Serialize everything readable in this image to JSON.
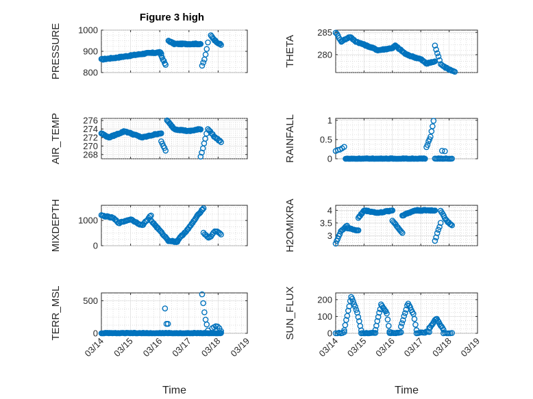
{
  "figure": {
    "title": "Figure 3 high"
  },
  "colors": {
    "marker": "#0072BD",
    "axis": "#262626"
  },
  "chart_data": [
    {
      "type": "scatter",
      "name": "pressure",
      "ylabel": "PRESSURE",
      "xlabel": "",
      "xlim": [
        0,
        5
      ],
      "ylim": [
        800,
        1000
      ],
      "yticks": [
        800,
        900,
        1000
      ],
      "xtick_labels": [],
      "title": "Figure 3 high",
      "segments": [
        {
          "x0": 0.0,
          "x1": 2.05,
          "n": 70,
          "y": [
            [
              0,
              862
            ],
            [
              0.5,
              870
            ],
            [
              1,
              880
            ],
            [
              1.5,
              890
            ],
            [
              2.0,
              895
            ],
            [
              2.05,
              890
            ]
          ]
        },
        {
          "x0": 2.05,
          "x1": 2.2,
          "n": 6,
          "y": [
            [
              2.05,
              880
            ],
            [
              2.2,
              835
            ]
          ]
        },
        {
          "x0": 2.3,
          "x1": 3.4,
          "n": 40,
          "y": [
            [
              2.3,
              950
            ],
            [
              2.5,
              935
            ],
            [
              3.0,
              935
            ],
            [
              3.4,
              935
            ]
          ]
        },
        {
          "x0": 3.45,
          "x1": 3.65,
          "n": 6,
          "y": [
            [
              3.45,
              830
            ],
            [
              3.55,
              870
            ],
            [
              3.65,
              940
            ]
          ]
        },
        {
          "x0": 3.75,
          "x1": 4.1,
          "n": 12,
          "y": [
            [
              3.75,
              975
            ],
            [
              3.9,
              950
            ],
            [
              4.1,
              930
            ]
          ]
        }
      ]
    },
    {
      "type": "scatter",
      "name": "theta",
      "ylabel": "THETA",
      "xlabel": "",
      "xlim": [
        0,
        5
      ],
      "ylim": [
        276,
        285.5
      ],
      "yticks": [
        280,
        285
      ],
      "xtick_labels": [],
      "segments": [
        {
          "x0": 0.0,
          "x1": 0.2,
          "n": 6,
          "y": [
            [
              0,
              285
            ],
            [
              0.1,
              284
            ],
            [
              0.2,
              283
            ]
          ]
        },
        {
          "x0": 0.2,
          "x1": 0.9,
          "n": 20,
          "y": [
            [
              0.2,
              283
            ],
            [
              0.5,
              284
            ],
            [
              0.7,
              283
            ],
            [
              0.9,
              282.5
            ]
          ]
        },
        {
          "x0": 0.9,
          "x1": 2.1,
          "n": 40,
          "y": [
            [
              0.9,
              282.5
            ],
            [
              1.5,
              281
            ],
            [
              2.0,
              281.5
            ],
            [
              2.1,
              282
            ]
          ]
        },
        {
          "x0": 2.1,
          "x1": 3.5,
          "n": 45,
          "y": [
            [
              2.1,
              282
            ],
            [
              2.5,
              280
            ],
            [
              3.0,
              279
            ],
            [
              3.2,
              278
            ],
            [
              3.5,
              278.5
            ]
          ]
        },
        {
          "x0": 3.5,
          "x1": 4.2,
          "n": 18,
          "y": [
            [
              3.5,
              282
            ],
            [
              3.7,
              278
            ],
            [
              3.9,
              277
            ],
            [
              4.2,
              276.2
            ]
          ]
        }
      ]
    },
    {
      "type": "scatter",
      "name": "air_temp",
      "ylabel": "AIR_TEMP",
      "xlabel": "",
      "xlim": [
        0,
        5
      ],
      "ylim": [
        267,
        276.5
      ],
      "yticks": [
        268,
        270,
        272,
        274,
        276
      ],
      "xtick_labels": [],
      "segments": [
        {
          "x0": 0.0,
          "x1": 2.05,
          "n": 65,
          "y": [
            [
              0,
              273
            ],
            [
              0.25,
              272
            ],
            [
              0.8,
              273.5
            ],
            [
              1.4,
              272
            ],
            [
              2.0,
              273
            ]
          ]
        },
        {
          "x0": 2.05,
          "x1": 2.2,
          "n": 5,
          "y": [
            [
              2.05,
              271
            ],
            [
              2.2,
              269
            ]
          ]
        },
        {
          "x0": 2.25,
          "x1": 3.4,
          "n": 40,
          "y": [
            [
              2.25,
              276
            ],
            [
              2.5,
              274
            ],
            [
              3.0,
              273.5
            ],
            [
              3.4,
              274
            ]
          ]
        },
        {
          "x0": 3.4,
          "x1": 3.6,
          "n": 6,
          "y": [
            [
              3.4,
              267.5
            ],
            [
              3.5,
              270
            ],
            [
              3.6,
              273
            ]
          ]
        },
        {
          "x0": 3.65,
          "x1": 4.1,
          "n": 12,
          "y": [
            [
              3.65,
              274
            ],
            [
              3.9,
              272
            ],
            [
              4.1,
              271
            ]
          ]
        }
      ]
    },
    {
      "type": "scatter",
      "name": "rainfall",
      "ylabel": "RAINFALL",
      "xlabel": "",
      "xlim": [
        0,
        5
      ],
      "ylim": [
        0,
        1.05
      ],
      "yticks": [
        0,
        0.5,
        1
      ],
      "xtick_labels": [],
      "segments": [
        {
          "x0": 0.0,
          "x1": 0.3,
          "n": 5,
          "y": [
            [
              0,
              0.2
            ],
            [
              0.3,
              0.3
            ]
          ]
        },
        {
          "x0": 0.35,
          "x1": 3.15,
          "n": 95,
          "y": [
            [
              0.35,
              0
            ],
            [
              3.15,
              0
            ]
          ]
        },
        {
          "x0": 3.2,
          "x1": 3.45,
          "n": 8,
          "y": [
            [
              3.2,
              0.3
            ],
            [
              3.35,
              0.6
            ],
            [
              3.45,
              1.0
            ]
          ]
        },
        {
          "x0": 3.5,
          "x1": 4.1,
          "n": 15,
          "y": [
            [
              3.5,
              0
            ],
            [
              4.1,
              0
            ]
          ]
        },
        {
          "x0": 3.75,
          "x1": 3.85,
          "n": 2,
          "y": [
            [
              3.75,
              0.2
            ],
            [
              3.85,
              0.2
            ]
          ]
        }
      ]
    },
    {
      "type": "scatter",
      "name": "mixdepth",
      "ylabel": "MIXDEPTH",
      "xlabel": "",
      "xlim": [
        0,
        5
      ],
      "ylim": [
        0,
        1600
      ],
      "yticks": [
        0,
        1000
      ],
      "xtick_labels": [],
      "segments": [
        {
          "x0": 0.0,
          "x1": 1.7,
          "n": 45,
          "y": [
            [
              0,
              1200
            ],
            [
              0.4,
              1100
            ],
            [
              0.6,
              900
            ],
            [
              1.0,
              1050
            ],
            [
              1.4,
              800
            ],
            [
              1.7,
              1200
            ]
          ]
        },
        {
          "x0": 1.7,
          "x1": 2.6,
          "n": 28,
          "y": [
            [
              1.7,
              1000
            ],
            [
              2.0,
              600
            ],
            [
              2.3,
              200
            ],
            [
              2.6,
              150
            ]
          ]
        },
        {
          "x0": 2.6,
          "x1": 3.5,
          "n": 30,
          "y": [
            [
              2.6,
              200
            ],
            [
              3.0,
              700
            ],
            [
              3.3,
              1200
            ],
            [
              3.5,
              1500
            ]
          ]
        },
        {
          "x0": 3.5,
          "x1": 4.1,
          "n": 15,
          "y": [
            [
              3.5,
              500
            ],
            [
              3.7,
              300
            ],
            [
              3.9,
              600
            ],
            [
              4.1,
              450
            ]
          ]
        }
      ]
    },
    {
      "type": "scatter",
      "name": "h2omixra",
      "ylabel": "H2OMIXRA",
      "xlabel": "",
      "xlim": [
        0,
        5
      ],
      "ylim": [
        2.6,
        4.2
      ],
      "yticks": [
        3,
        3.5,
        4
      ],
      "xtick_labels": [],
      "segments": [
        {
          "x0": 0.0,
          "x1": 0.4,
          "n": 12,
          "y": [
            [
              0,
              2.7
            ],
            [
              0.2,
              3.2
            ],
            [
              0.4,
              3.4
            ]
          ]
        },
        {
          "x0": 0.4,
          "x1": 0.8,
          "n": 12,
          "y": [
            [
              0.4,
              3.3
            ],
            [
              0.8,
              3.2
            ]
          ]
        },
        {
          "x0": 0.8,
          "x1": 2.0,
          "n": 40,
          "y": [
            [
              0.8,
              3.7
            ],
            [
              1.0,
              4.0
            ],
            [
              1.5,
              3.9
            ],
            [
              2.0,
              4.0
            ]
          ]
        },
        {
          "x0": 2.0,
          "x1": 2.35,
          "n": 10,
          "y": [
            [
              2.0,
              3.6
            ],
            [
              2.35,
              3.1
            ]
          ]
        },
        {
          "x0": 2.35,
          "x1": 3.5,
          "n": 40,
          "y": [
            [
              2.35,
              3.8
            ],
            [
              2.8,
              4.0
            ],
            [
              3.5,
              4.0
            ]
          ]
        },
        {
          "x0": 3.5,
          "x1": 3.7,
          "n": 6,
          "y": [
            [
              3.5,
              2.8
            ],
            [
              3.7,
              3.5
            ]
          ]
        },
        {
          "x0": 3.7,
          "x1": 4.1,
          "n": 12,
          "y": [
            [
              3.7,
              4.0
            ],
            [
              3.9,
              3.6
            ],
            [
              4.1,
              3.4
            ]
          ]
        }
      ]
    },
    {
      "type": "scatter",
      "name": "terr_msl",
      "ylabel": "TERR_MSL",
      "xlabel": "Time",
      "xlim": [
        0,
        5
      ],
      "ylim": [
        0,
        620
      ],
      "yticks": [
        0,
        500
      ],
      "xtick_labels": [
        "03/14",
        "03/15",
        "03/16",
        "03/17",
        "03/18",
        "03/19"
      ],
      "segments": [
        {
          "x0": 0.0,
          "x1": 4.1,
          "n": 130,
          "y": [
            [
              0,
              0
            ],
            [
              4.1,
              0
            ]
          ]
        },
        {
          "x0": 2.18,
          "x1": 2.28,
          "n": 3,
          "y": [
            [
              2.18,
              380
            ],
            [
              2.23,
              150
            ],
            [
              2.28,
              150
            ]
          ]
        },
        {
          "x0": 3.45,
          "x1": 3.65,
          "n": 6,
          "y": [
            [
              3.45,
              600
            ],
            [
              3.5,
              420
            ],
            [
              3.55,
              250
            ],
            [
              3.6,
              150
            ],
            [
              3.65,
              50
            ]
          ]
        },
        {
          "x0": 3.8,
          "x1": 4.1,
          "n": 6,
          "y": [
            [
              3.8,
              80
            ],
            [
              3.95,
              120
            ],
            [
              4.1,
              40
            ]
          ]
        }
      ]
    },
    {
      "type": "scatter",
      "name": "sun_flux",
      "ylabel": "SUN_FLUX",
      "xlabel": "Time",
      "xlim": [
        0,
        5
      ],
      "ylim": [
        0,
        240
      ],
      "yticks": [
        0,
        100,
        200
      ],
      "xtick_labels": [
        "03/14",
        "03/15",
        "03/16",
        "03/17",
        "03/18",
        "03/19"
      ],
      "segments": [
        {
          "x0": 0.0,
          "x1": 0.3,
          "n": 6,
          "y": [
            [
              0,
              0
            ],
            [
              0.3,
              5
            ]
          ]
        },
        {
          "x0": 0.3,
          "x1": 0.9,
          "n": 18,
          "y": [
            [
              0.3,
              20
            ],
            [
              0.55,
              220
            ],
            [
              0.75,
              130
            ],
            [
              0.9,
              20
            ]
          ]
        },
        {
          "x0": 0.9,
          "x1": 1.4,
          "n": 12,
          "y": [
            [
              0.9,
              0
            ],
            [
              1.4,
              5
            ]
          ]
        },
        {
          "x0": 1.4,
          "x1": 1.9,
          "n": 16,
          "y": [
            [
              1.4,
              20
            ],
            [
              1.6,
              170
            ],
            [
              1.8,
              120
            ],
            [
              1.9,
              10
            ]
          ]
        },
        {
          "x0": 1.9,
          "x1": 2.3,
          "n": 10,
          "y": [
            [
              1.9,
              0
            ],
            [
              2.3,
              5
            ]
          ]
        },
        {
          "x0": 2.3,
          "x1": 2.85,
          "n": 16,
          "y": [
            [
              2.3,
              40
            ],
            [
              2.55,
              180
            ],
            [
              2.75,
              110
            ],
            [
              2.85,
              20
            ]
          ]
        },
        {
          "x0": 2.85,
          "x1": 3.3,
          "n": 10,
          "y": [
            [
              2.85,
              0
            ],
            [
              3.3,
              10
            ]
          ]
        },
        {
          "x0": 3.3,
          "x1": 3.8,
          "n": 16,
          "y": [
            [
              3.3,
              30
            ],
            [
              3.55,
              90
            ],
            [
              3.8,
              20
            ]
          ]
        },
        {
          "x0": 3.8,
          "x1": 4.1,
          "n": 6,
          "y": [
            [
              3.8,
              0
            ],
            [
              4.1,
              0
            ]
          ]
        }
      ]
    }
  ]
}
